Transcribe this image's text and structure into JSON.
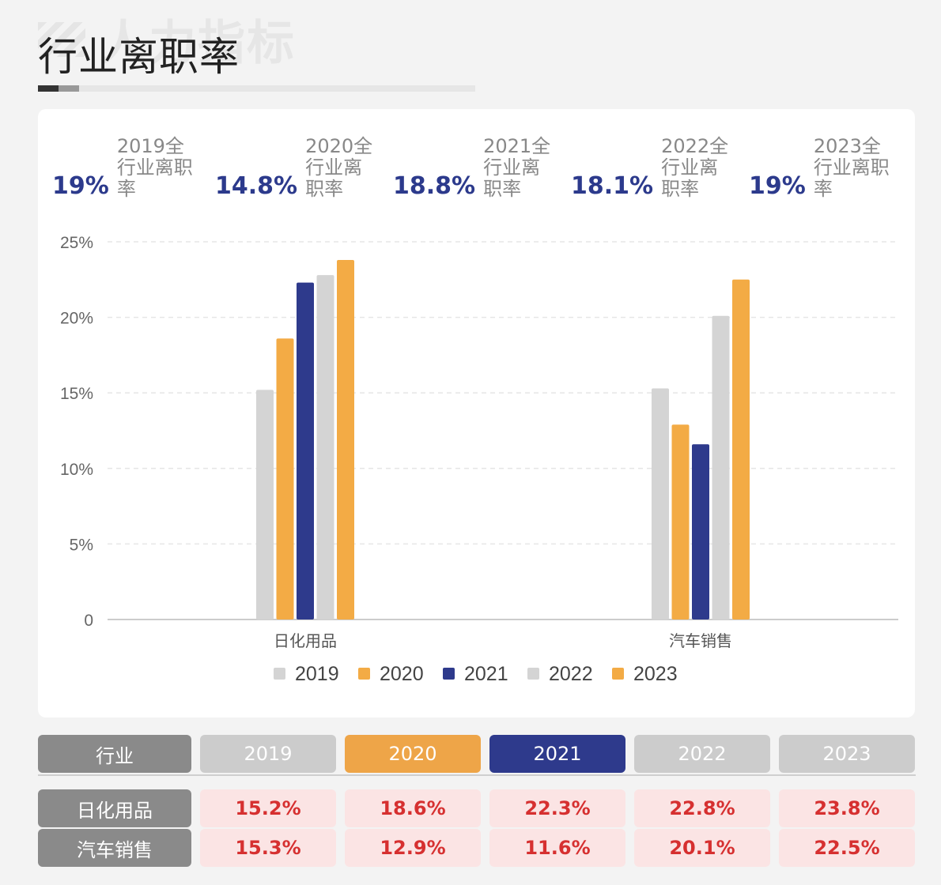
{
  "watermark": "人力指标",
  "page_title": "行业离职率",
  "stats": [
    {
      "pct": "19%",
      "label": "2019全行业离职率"
    },
    {
      "pct": "14.8%",
      "label": "2020全行业离职率"
    },
    {
      "pct": "18.8%",
      "label": "2021全行业离职率"
    },
    {
      "pct": "18.1%",
      "label": "2022全行业离职率"
    },
    {
      "pct": "19%",
      "label": "2023全行业离职率"
    }
  ],
  "colors": {
    "y2019": "#d4d4d4",
    "y2020": "#f3ab45",
    "y2021": "#2e3a8c",
    "y2022": "#d4d4d4",
    "y2023": "#f3ab45",
    "accent": "#2c3a8c"
  },
  "chart_data": {
    "type": "bar",
    "categories": [
      "日化用品",
      "汽车销售"
    ],
    "series": [
      {
        "name": "2019",
        "values": [
          15.2,
          15.3
        ]
      },
      {
        "name": "2020",
        "values": [
          18.6,
          12.9
        ]
      },
      {
        "name": "2021",
        "values": [
          22.3,
          11.6
        ]
      },
      {
        "name": "2022",
        "values": [
          22.8,
          20.1
        ]
      },
      {
        "name": "2023",
        "values": [
          23.8,
          22.5
        ]
      }
    ],
    "ylim": [
      0,
      25
    ],
    "yticks": [
      0,
      5,
      10,
      15,
      20,
      25
    ],
    "ytick_labels": [
      "0",
      "5%",
      "10%",
      "15%",
      "20%",
      "25%"
    ],
    "grid": true,
    "legend_position": "bottom"
  },
  "table": {
    "header_label": "行业",
    "years": [
      "2019",
      "2020",
      "2021",
      "2022",
      "2023"
    ],
    "rows": [
      {
        "industry": "日化用品",
        "values": [
          "15.2%",
          "18.6%",
          "22.3%",
          "22.8%",
          "23.8%"
        ]
      },
      {
        "industry": "汽车销售",
        "values": [
          "15.3%",
          "12.9%",
          "11.6%",
          "20.1%",
          "22.5%"
        ]
      }
    ]
  }
}
